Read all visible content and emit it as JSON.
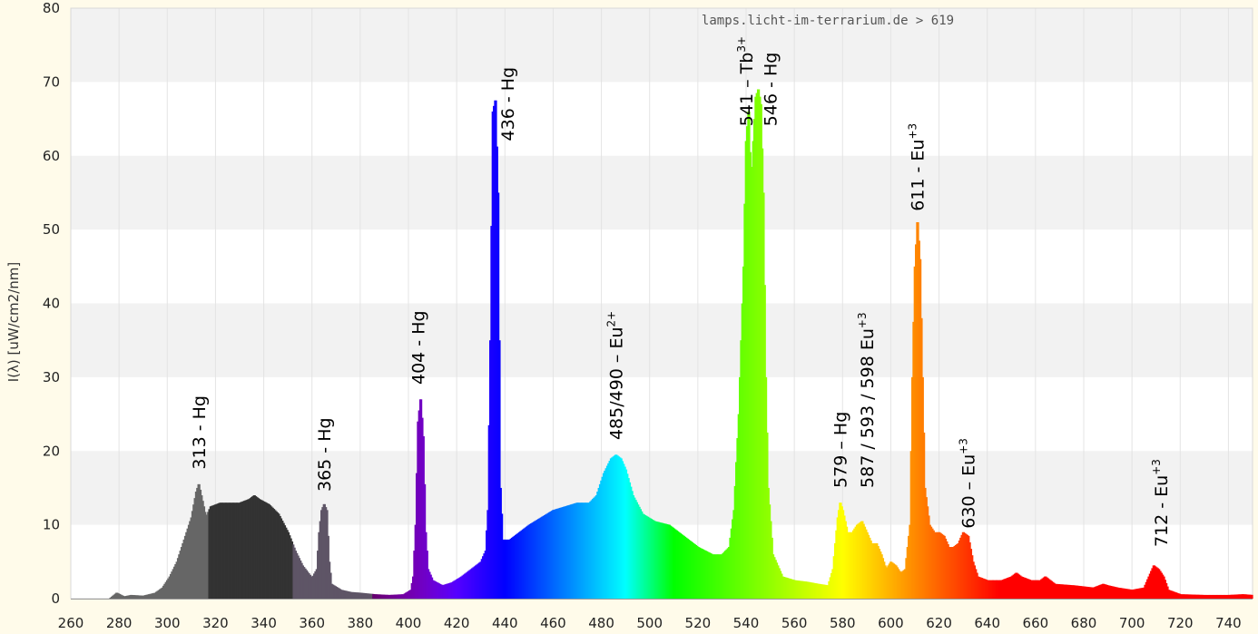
{
  "chart_data": {
    "type": "area",
    "source_label": "lamps.licht-im-terrarium.de > 619",
    "ylabel": "I(λ)  [uW/cm2/nm]",
    "xlabel": "",
    "xlim": [
      260,
      750
    ],
    "ylim": [
      0,
      80
    ],
    "grid": true,
    "x_ticks": [
      "260",
      "280",
      "300",
      "320",
      "340",
      "360",
      "380",
      "400",
      "420",
      "440",
      "460",
      "480",
      "500",
      "520",
      "540",
      "560",
      "580",
      "600",
      "620",
      "640",
      "660",
      "680",
      "700",
      "720",
      "740"
    ],
    "y_ticks": [
      "0",
      "10",
      "20",
      "30",
      "40",
      "50",
      "60",
      "70",
      "80"
    ],
    "spectrum": [
      [
        276,
        0
      ],
      [
        279,
        0.8
      ],
      [
        282,
        0.3
      ],
      [
        285,
        0.5
      ],
      [
        290,
        0.4
      ],
      [
        295,
        0.8
      ],
      [
        298,
        1.5
      ],
      [
        301,
        3
      ],
      [
        304,
        5
      ],
      [
        307,
        8
      ],
      [
        310,
        11
      ],
      [
        312,
        14.5
      ],
      [
        313,
        15.5
      ],
      [
        314,
        14
      ],
      [
        316,
        11
      ],
      [
        318,
        12.5
      ],
      [
        322,
        13
      ],
      [
        326,
        13
      ],
      [
        330,
        13
      ],
      [
        334,
        13.5
      ],
      [
        336,
        14
      ],
      [
        338,
        13.5
      ],
      [
        342,
        12.8
      ],
      [
        346,
        11.5
      ],
      [
        350,
        9
      ],
      [
        353,
        6.5
      ],
      [
        356,
        4.5
      ],
      [
        360,
        2.8
      ],
      [
        362,
        4
      ],
      [
        363,
        9
      ],
      [
        364,
        12
      ],
      [
        365,
        12.8
      ],
      [
        366,
        12
      ],
      [
        367,
        5
      ],
      [
        368,
        2
      ],
      [
        372,
        1.2
      ],
      [
        376,
        0.9
      ],
      [
        380,
        0.8
      ],
      [
        386,
        0.6
      ],
      [
        392,
        0.5
      ],
      [
        398,
        0.6
      ],
      [
        401,
        1.2
      ],
      [
        402,
        3
      ],
      [
        403,
        10
      ],
      [
        404,
        24
      ],
      [
        405,
        27
      ],
      [
        406,
        22
      ],
      [
        407,
        9
      ],
      [
        408,
        4
      ],
      [
        410,
        2.5
      ],
      [
        414,
        1.8
      ],
      [
        418,
        2.2
      ],
      [
        422,
        3
      ],
      [
        426,
        4
      ],
      [
        430,
        5
      ],
      [
        432,
        6.5
      ],
      [
        433,
        12
      ],
      [
        434,
        35
      ],
      [
        435,
        66
      ],
      [
        436,
        67.5
      ],
      [
        437,
        55
      ],
      [
        438,
        15
      ],
      [
        439,
        8
      ],
      [
        442,
        8
      ],
      [
        446,
        9
      ],
      [
        450,
        10
      ],
      [
        455,
        11
      ],
      [
        460,
        12
      ],
      [
        465,
        12.5
      ],
      [
        470,
        13
      ],
      [
        475,
        13
      ],
      [
        478,
        14
      ],
      [
        481,
        17
      ],
      [
        484,
        19
      ],
      [
        486,
        19.5
      ],
      [
        488,
        19
      ],
      [
        490,
        17.5
      ],
      [
        493,
        14
      ],
      [
        497,
        11.5
      ],
      [
        502,
        10.5
      ],
      [
        508,
        10
      ],
      [
        514,
        8.5
      ],
      [
        520,
        7
      ],
      [
        526,
        6
      ],
      [
        530,
        6
      ],
      [
        533,
        7
      ],
      [
        535,
        12
      ],
      [
        537,
        25
      ],
      [
        539,
        45
      ],
      [
        540,
        62
      ],
      [
        541,
        66
      ],
      [
        542,
        55
      ],
      [
        543,
        62
      ],
      [
        544,
        68
      ],
      [
        545,
        69
      ],
      [
        546,
        67
      ],
      [
        547,
        55
      ],
      [
        548,
        30
      ],
      [
        549,
        15
      ],
      [
        551,
        6
      ],
      [
        555,
        3
      ],
      [
        560,
        2.5
      ],
      [
        565,
        2.3
      ],
      [
        570,
        2
      ],
      [
        574,
        1.8
      ],
      [
        576,
        4
      ],
      [
        578,
        11
      ],
      [
        579,
        13
      ],
      [
        580,
        12
      ],
      [
        582,
        9
      ],
      [
        584,
        9
      ],
      [
        586,
        10
      ],
      [
        588,
        10.5
      ],
      [
        590,
        9
      ],
      [
        592,
        7.5
      ],
      [
        594,
        7.5
      ],
      [
        596,
        6
      ],
      [
        598,
        4
      ],
      [
        600,
        5
      ],
      [
        602,
        4.5
      ],
      [
        604,
        3.5
      ],
      [
        606,
        4
      ],
      [
        608,
        10
      ],
      [
        609,
        30
      ],
      [
        610,
        45
      ],
      [
        611,
        51
      ],
      [
        612,
        46
      ],
      [
        613,
        30
      ],
      [
        614,
        15
      ],
      [
        616,
        10
      ],
      [
        618,
        9
      ],
      [
        620,
        9
      ],
      [
        622,
        8.5
      ],
      [
        624,
        7
      ],
      [
        626,
        7
      ],
      [
        628,
        7.5
      ],
      [
        630,
        9
      ],
      [
        632,
        8.5
      ],
      [
        634,
        5
      ],
      [
        636,
        3
      ],
      [
        640,
        2.5
      ],
      [
        646,
        2.5
      ],
      [
        650,
        3
      ],
      [
        652,
        3.5
      ],
      [
        654,
        3
      ],
      [
        658,
        2.5
      ],
      [
        662,
        2.5
      ],
      [
        664,
        3
      ],
      [
        668,
        2
      ],
      [
        676,
        1.8
      ],
      [
        684,
        1.5
      ],
      [
        688,
        2
      ],
      [
        690,
        1.8
      ],
      [
        694,
        1.5
      ],
      [
        700,
        1.2
      ],
      [
        705,
        1.5
      ],
      [
        707,
        3
      ],
      [
        709,
        4.5
      ],
      [
        711,
        4
      ],
      [
        713,
        3
      ],
      [
        715,
        1.2
      ],
      [
        720,
        0.6
      ],
      [
        730,
        0.5
      ],
      [
        740,
        0.5
      ],
      [
        746,
        0.6
      ],
      [
        750,
        0.5
      ]
    ],
    "annotations": [
      {
        "text": "313 - Hg",
        "sup": "",
        "x": 313,
        "y": 17.5
      },
      {
        "text": "365 - Hg",
        "sup": "",
        "x": 365,
        "y": 14.5
      },
      {
        "text": "404 - Hg",
        "sup": "",
        "x": 404,
        "y": 29
      },
      {
        "text": "436 - Hg",
        "sup": "",
        "x": 441,
        "y": 62
      },
      {
        "text": "485/490 – Eu",
        "sup": "2+",
        "x": 486,
        "y": 21.5
      },
      {
        "text": "541 – Tb",
        "sup": "3+",
        "x": 540,
        "y": 64
      },
      {
        "text": "546 - Hg",
        "sup": "",
        "x": 550,
        "y": 64
      },
      {
        "text": "579 – Hg",
        "sup": "",
        "x": 579,
        "y": 15
      },
      {
        "text": "587 / 593 / 598 Eu",
        "sup": "+3",
        "x": 590,
        "y": 15
      },
      {
        "text": "611 - Eu",
        "sup": "+3",
        "x": 611,
        "y": 52.5
      },
      {
        "text": "630 – Eu",
        "sup": "+3",
        "x": 632,
        "y": 9.5
      },
      {
        "text": "712 - Eu",
        "sup": "+3",
        "x": 712,
        "y": 7
      }
    ]
  }
}
